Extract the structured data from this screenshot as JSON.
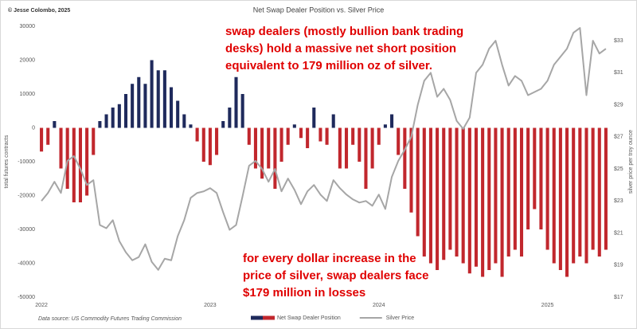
{
  "chart_data": {
    "type": "bar",
    "title": "Net Swap Dealer Position vs. Silver Price",
    "credit": "© Jesse Colombo, 2025",
    "source": "Data source: US Commodity Futures Trading Commission",
    "ylabel": "total futures contracts",
    "y2label": "silver price per troy ounce",
    "annotations": [
      [
        "swap dealers (mostly bullion bank trading",
        "desks) hold a massive net short position",
        "equivalent to 179 million oz of silver."
      ],
      [
        "for every dollar increase in the",
        "price of silver, swap dealers face",
        "$179 million in losses"
      ]
    ],
    "categories": [
      "2022",
      null,
      null,
      null,
      null,
      null,
      null,
      null,
      null,
      null,
      null,
      null,
      null,
      null,
      null,
      null,
      null,
      null,
      null,
      null,
      null,
      null,
      null,
      null,
      null,
      null,
      "2023",
      null,
      null,
      null,
      null,
      null,
      null,
      null,
      null,
      null,
      null,
      null,
      null,
      null,
      null,
      null,
      null,
      null,
      null,
      null,
      null,
      null,
      null,
      null,
      null,
      null,
      "2024",
      null,
      null,
      null,
      null,
      null,
      null,
      null,
      null,
      null,
      null,
      null,
      null,
      null,
      null,
      null,
      null,
      null,
      null,
      null,
      null,
      null,
      null,
      null,
      null,
      null,
      "2025",
      null,
      null,
      null,
      null,
      null,
      null,
      null,
      null,
      null
    ],
    "series": [
      {
        "name": "Net Swap Dealer Position",
        "type": "bar",
        "color": "#1f2a5c",
        "negative_color": "#c1272d",
        "values": [
          -7000,
          -5000,
          2000,
          -12000,
          -18000,
          -22000,
          -22000,
          -20000,
          -8000,
          2000,
          4000,
          6000,
          7000,
          10000,
          13000,
          15000,
          13000,
          20000,
          17000,
          17000,
          12000,
          8000,
          4000,
          1000,
          -4000,
          -10000,
          -11000,
          -8000,
          2000,
          6000,
          15000,
          10000,
          -5000,
          -12000,
          -15000,
          -12000,
          -18000,
          -10000,
          -5000,
          1000,
          -3000,
          -6000,
          6000,
          -4000,
          -5000,
          4000,
          -12000,
          -12000,
          -5000,
          -10000,
          -18000,
          -12000,
          -5000,
          1000,
          4000,
          -8000,
          -18000,
          -25000,
          -32000,
          -38000,
          -40000,
          -42000,
          -39000,
          -36000,
          -38000,
          -40000,
          -43000,
          -41000,
          -44000,
          -42000,
          -40000,
          -44000,
          -38000,
          -36000,
          -38000,
          -30000,
          -24000,
          -30000,
          -36000,
          -40000,
          -42000,
          -44000,
          -40000,
          -38000,
          -40000,
          -36000,
          -38000,
          -36000
        ]
      },
      {
        "name": "Silver Price",
        "type": "line",
        "color": "#a6a6a6",
        "axis": "y2",
        "values": [
          23,
          23.5,
          24.2,
          23.5,
          25.5,
          25.8,
          25,
          24,
          24.3,
          21.5,
          21.3,
          21.8,
          20.5,
          19.8,
          19.3,
          19.5,
          20.3,
          19.2,
          18.7,
          19.4,
          19.3,
          20.8,
          21.8,
          23.2,
          23.5,
          23.6,
          23.8,
          23.5,
          22.3,
          21.2,
          21.5,
          23.3,
          25.2,
          25.5,
          25,
          24.2,
          25,
          23.6,
          24.4,
          23.7,
          22.8,
          23.6,
          24,
          23.4,
          23,
          24.3,
          23.8,
          23.4,
          23.1,
          22.9,
          23,
          22.7,
          23.4,
          22.5,
          24.5,
          25.5,
          26.2,
          27,
          29,
          30.5,
          31,
          29.5,
          30,
          29.3,
          28,
          27.5,
          28.2,
          31,
          31.5,
          32.5,
          33,
          31.5,
          30.2,
          30.8,
          30.5,
          29.6,
          29.8,
          30,
          30.5,
          31.5,
          32,
          32.5,
          33.5,
          33.8,
          29.6,
          33,
          32.2,
          32.5
        ]
      }
    ],
    "ylim": [
      -50000,
      30000
    ],
    "yticks": [
      -50000,
      -40000,
      -30000,
      -20000,
      -10000,
      0,
      10000,
      20000,
      30000
    ],
    "y2lim": [
      17,
      33.9
    ],
    "y2ticks": [
      {
        "value": 17,
        "label": "$17"
      },
      {
        "value": 19,
        "label": "$19"
      },
      {
        "value": 21,
        "label": "$21"
      },
      {
        "value": 23,
        "label": "$23"
      },
      {
        "value": 25,
        "label": "$25"
      },
      {
        "value": 27,
        "label": "$27"
      },
      {
        "value": 29,
        "label": "$29"
      },
      {
        "value": 31,
        "label": "$31"
      },
      {
        "value": 33,
        "label": "$33"
      }
    ],
    "grid": false,
    "legend": "bottom"
  }
}
